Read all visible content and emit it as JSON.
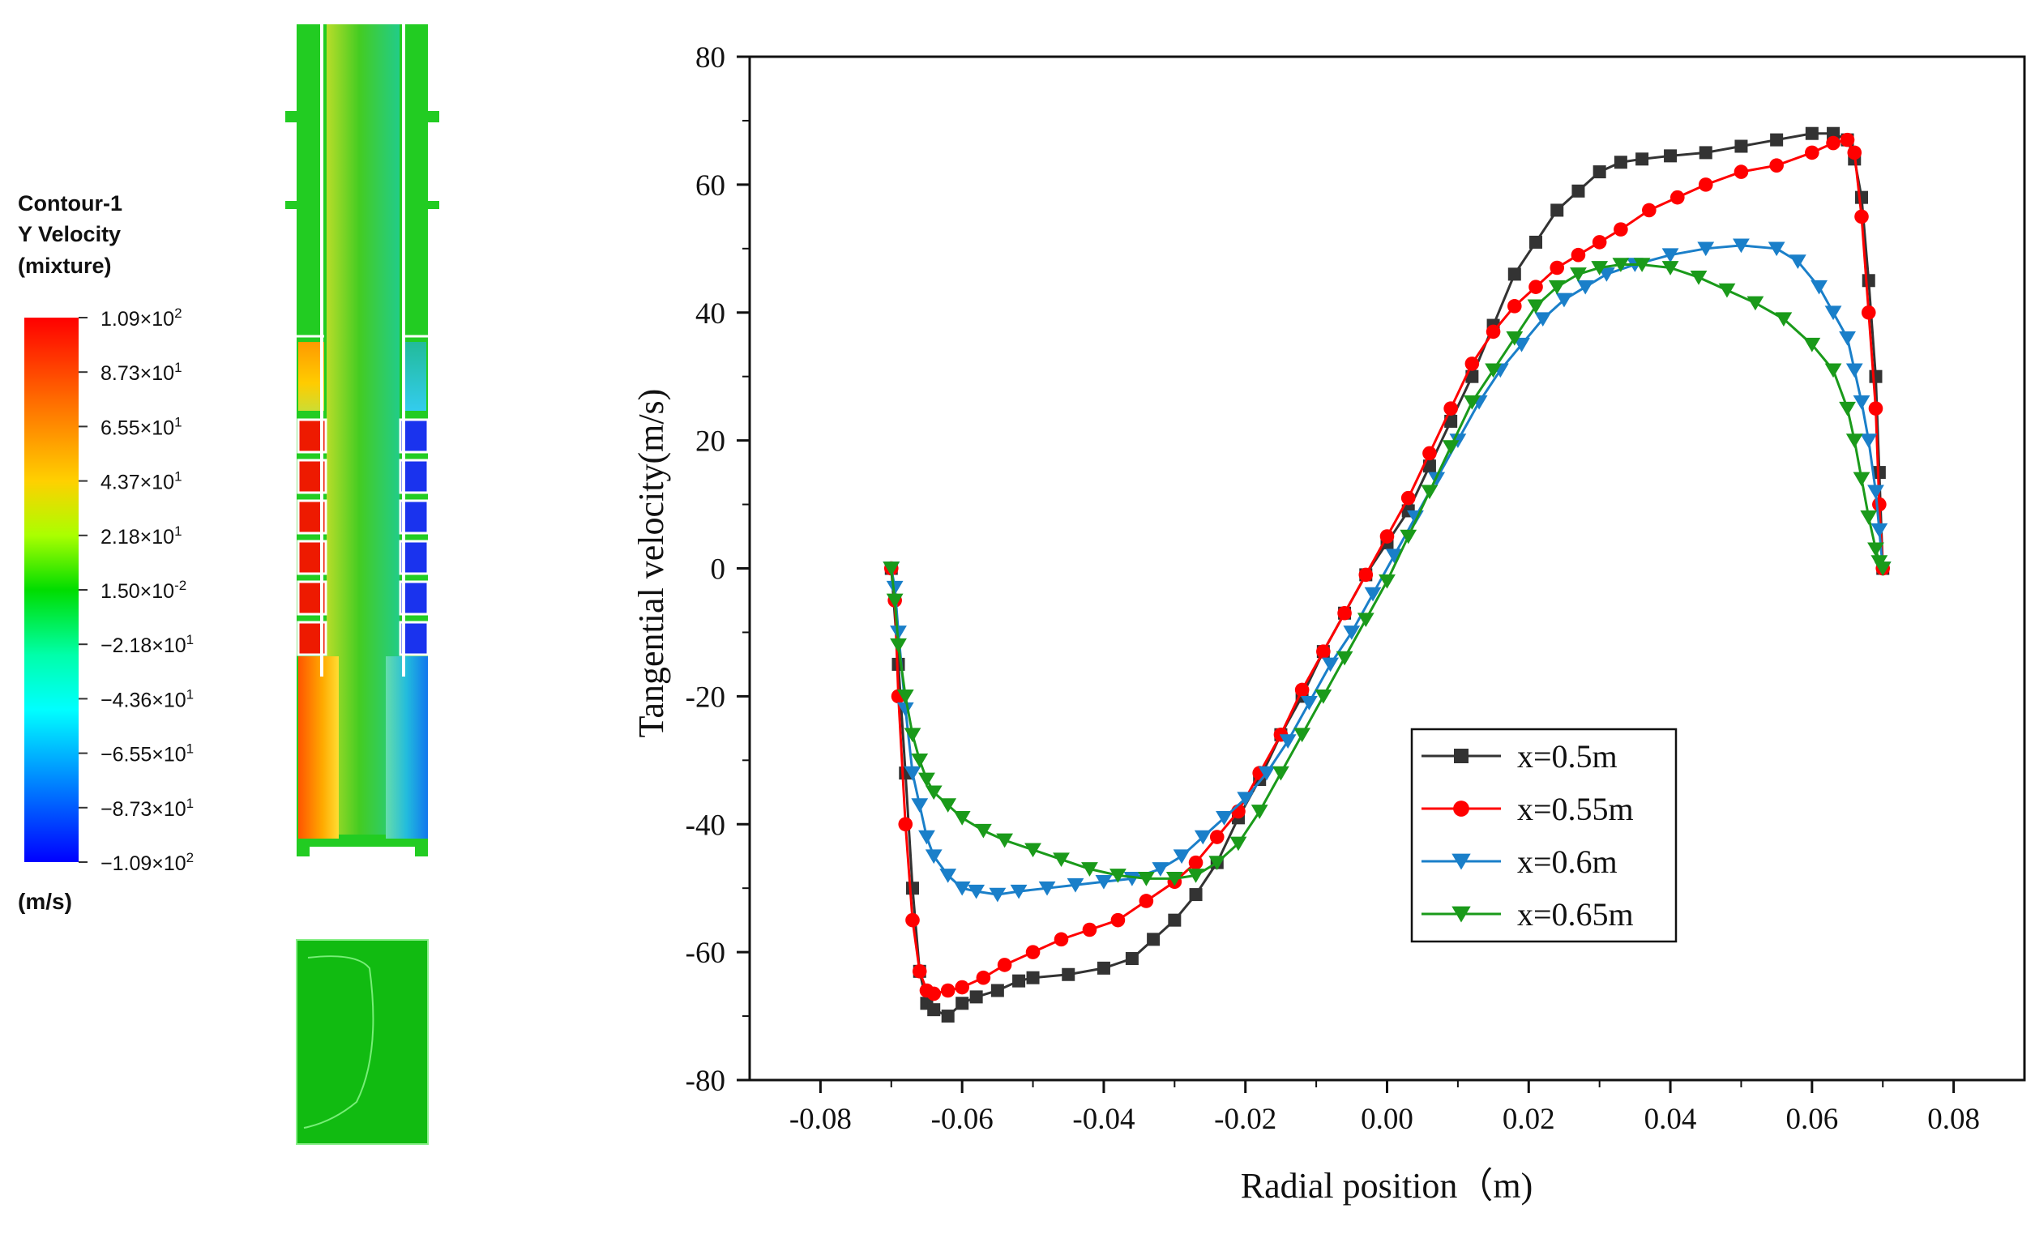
{
  "contour": {
    "title_lines": [
      "Contour-1",
      "Y Velocity",
      "(mixture)"
    ],
    "unit": "(m/s)",
    "legend_labels": [
      {
        "m": "1.09",
        "e": "2",
        "neg": false
      },
      {
        "m": "8.73",
        "e": "1",
        "neg": false
      },
      {
        "m": "6.55",
        "e": "1",
        "neg": false
      },
      {
        "m": "4.37",
        "e": "1",
        "neg": false
      },
      {
        "m": "2.18",
        "e": "1",
        "neg": false
      },
      {
        "m": "1.50",
        "e": "-2",
        "neg": false
      },
      {
        "m": "2.18",
        "e": "1",
        "neg": true
      },
      {
        "m": "4.36",
        "e": "1",
        "neg": true
      },
      {
        "m": "6.55",
        "e": "1",
        "neg": true
      },
      {
        "m": "8.73",
        "e": "1",
        "neg": true
      },
      {
        "m": "1.09",
        "e": "2",
        "neg": true
      }
    ],
    "colors": {
      "high": "#ff0000",
      "mid_high": "#ffff00",
      "mid": "#00cc00",
      "mid_low": "#00ffff",
      "low": "#0000ff",
      "geometry": "#22cc22"
    }
  },
  "chart_data": {
    "type": "line",
    "title": "",
    "xlabel": "Radial position（m)",
    "ylabel": "Tangential velocity(m/s)",
    "xlim": [
      -0.09,
      0.09
    ],
    "ylim": [
      -80,
      80
    ],
    "xticks": [
      -0.08,
      -0.06,
      -0.04,
      -0.02,
      0.0,
      0.02,
      0.04,
      0.06,
      0.08
    ],
    "xtick_labels": [
      "-0.08",
      "-0.06",
      "-0.04",
      "-0.02",
      "0.00",
      "0.02",
      "0.04",
      "0.06",
      "0.08"
    ],
    "yticks": [
      -80,
      -60,
      -40,
      -20,
      0,
      20,
      40,
      60,
      80
    ],
    "ytick_labels": [
      "-80",
      "-60",
      "-40",
      "-20",
      "0",
      "20",
      "40",
      "60",
      "80"
    ],
    "legend_position": "lower-right",
    "series": [
      {
        "name": "x=0.5m",
        "color": "#333333",
        "marker": "square",
        "x": [
          -0.07,
          -0.069,
          -0.068,
          -0.067,
          -0.066,
          -0.065,
          -0.064,
          -0.062,
          -0.06,
          -0.058,
          -0.055,
          -0.052,
          -0.05,
          -0.045,
          -0.04,
          -0.036,
          -0.033,
          -0.03,
          -0.027,
          -0.024,
          -0.021,
          -0.018,
          -0.015,
          -0.012,
          -0.009,
          -0.006,
          -0.003,
          0.0,
          0.003,
          0.006,
          0.009,
          0.012,
          0.015,
          0.018,
          0.021,
          0.024,
          0.027,
          0.03,
          0.033,
          0.036,
          0.04,
          0.045,
          0.05,
          0.055,
          0.06,
          0.063,
          0.065,
          0.066,
          0.067,
          0.068,
          0.069,
          0.0695,
          0.07
        ],
        "y": [
          0,
          -15,
          -32,
          -50,
          -63,
          -68,
          -69,
          -70,
          -68,
          -67,
          -66,
          -64.5,
          -64,
          -63.5,
          -62.5,
          -61,
          -58,
          -55,
          -51,
          -46,
          -39,
          -33,
          -26,
          -20,
          -13,
          -7,
          -1,
          4,
          9,
          16,
          23,
          30,
          38,
          46,
          51,
          56,
          59,
          62,
          63.5,
          64,
          64.5,
          65,
          66,
          67,
          68,
          68,
          67,
          64,
          58,
          45,
          30,
          15,
          0
        ]
      },
      {
        "name": "x=0.55m",
        "color": "#ff0000",
        "marker": "circle",
        "x": [
          -0.07,
          -0.0695,
          -0.069,
          -0.068,
          -0.067,
          -0.066,
          -0.065,
          -0.064,
          -0.062,
          -0.06,
          -0.057,
          -0.054,
          -0.05,
          -0.046,
          -0.042,
          -0.038,
          -0.034,
          -0.03,
          -0.027,
          -0.024,
          -0.021,
          -0.018,
          -0.015,
          -0.012,
          -0.009,
          -0.006,
          -0.003,
          0.0,
          0.003,
          0.006,
          0.009,
          0.012,
          0.015,
          0.018,
          0.021,
          0.024,
          0.027,
          0.03,
          0.033,
          0.037,
          0.041,
          0.045,
          0.05,
          0.055,
          0.06,
          0.063,
          0.065,
          0.066,
          0.067,
          0.068,
          0.069,
          0.0695,
          0.07
        ],
        "y": [
          0,
          -5,
          -20,
          -40,
          -55,
          -63,
          -66,
          -66.5,
          -66,
          -65.5,
          -64,
          -62,
          -60,
          -58,
          -56.5,
          -55,
          -52,
          -49,
          -46,
          -42,
          -38,
          -32,
          -26,
          -19,
          -13,
          -7,
          -1,
          5,
          11,
          18,
          25,
          32,
          37,
          41,
          44,
          47,
          49,
          51,
          53,
          56,
          58,
          60,
          62,
          63,
          65,
          66.5,
          67,
          65,
          55,
          40,
          25,
          10,
          0
        ]
      },
      {
        "name": "x=0.6m",
        "color": "#1a7fc9",
        "marker": "triangle-down",
        "x": [
          -0.07,
          -0.0695,
          -0.069,
          -0.068,
          -0.067,
          -0.066,
          -0.065,
          -0.064,
          -0.062,
          -0.06,
          -0.058,
          -0.055,
          -0.052,
          -0.048,
          -0.044,
          -0.04,
          -0.036,
          -0.032,
          -0.029,
          -0.026,
          -0.023,
          -0.02,
          -0.017,
          -0.014,
          -0.011,
          -0.008,
          -0.005,
          -0.002,
          0.001,
          0.004,
          0.007,
          0.01,
          0.013,
          0.016,
          0.019,
          0.022,
          0.025,
          0.028,
          0.031,
          0.035,
          0.04,
          0.045,
          0.05,
          0.055,
          0.058,
          0.061,
          0.063,
          0.065,
          0.066,
          0.067,
          0.068,
          0.069,
          0.0695,
          0.07
        ],
        "y": [
          0,
          -3,
          -10,
          -22,
          -32,
          -37,
          -42,
          -45,
          -48,
          -50,
          -50.5,
          -51,
          -50.5,
          -50,
          -49.5,
          -49,
          -48.5,
          -47,
          -45,
          -42,
          -39,
          -36,
          -32,
          -27,
          -21,
          -15,
          -10,
          -4,
          2,
          8,
          14,
          20,
          26,
          31,
          35,
          39,
          42,
          44,
          46,
          47.5,
          49,
          50,
          50.5,
          50,
          48,
          44,
          40,
          36,
          31,
          26,
          20,
          12,
          6,
          0
        ]
      },
      {
        "name": "x=0.65m",
        "color": "#1a9a1a",
        "marker": "triangle-down",
        "x": [
          -0.07,
          -0.0695,
          -0.069,
          -0.068,
          -0.067,
          -0.066,
          -0.065,
          -0.064,
          -0.062,
          -0.06,
          -0.057,
          -0.054,
          -0.05,
          -0.046,
          -0.042,
          -0.038,
          -0.034,
          -0.03,
          -0.027,
          -0.024,
          -0.021,
          -0.018,
          -0.015,
          -0.012,
          -0.009,
          -0.006,
          -0.003,
          0.0,
          0.003,
          0.006,
          0.009,
          0.012,
          0.015,
          0.018,
          0.021,
          0.024,
          0.027,
          0.03,
          0.033,
          0.036,
          0.04,
          0.044,
          0.048,
          0.052,
          0.056,
          0.06,
          0.063,
          0.065,
          0.066,
          0.067,
          0.068,
          0.069,
          0.0695,
          0.07
        ],
        "y": [
          0,
          -5,
          -12,
          -20,
          -26,
          -30,
          -33,
          -35,
          -37,
          -39,
          -41,
          -42.5,
          -44,
          -45.5,
          -47,
          -48,
          -48.5,
          -48.5,
          -48,
          -46,
          -43,
          -38,
          -32,
          -26,
          -20,
          -14,
          -8,
          -2,
          5,
          12,
          19,
          26,
          31,
          36,
          41,
          44,
          46,
          47,
          47.5,
          47.5,
          47,
          45.5,
          43.5,
          41.5,
          39,
          35,
          31,
          25,
          20,
          14,
          8,
          3,
          1,
          0
        ]
      }
    ]
  }
}
